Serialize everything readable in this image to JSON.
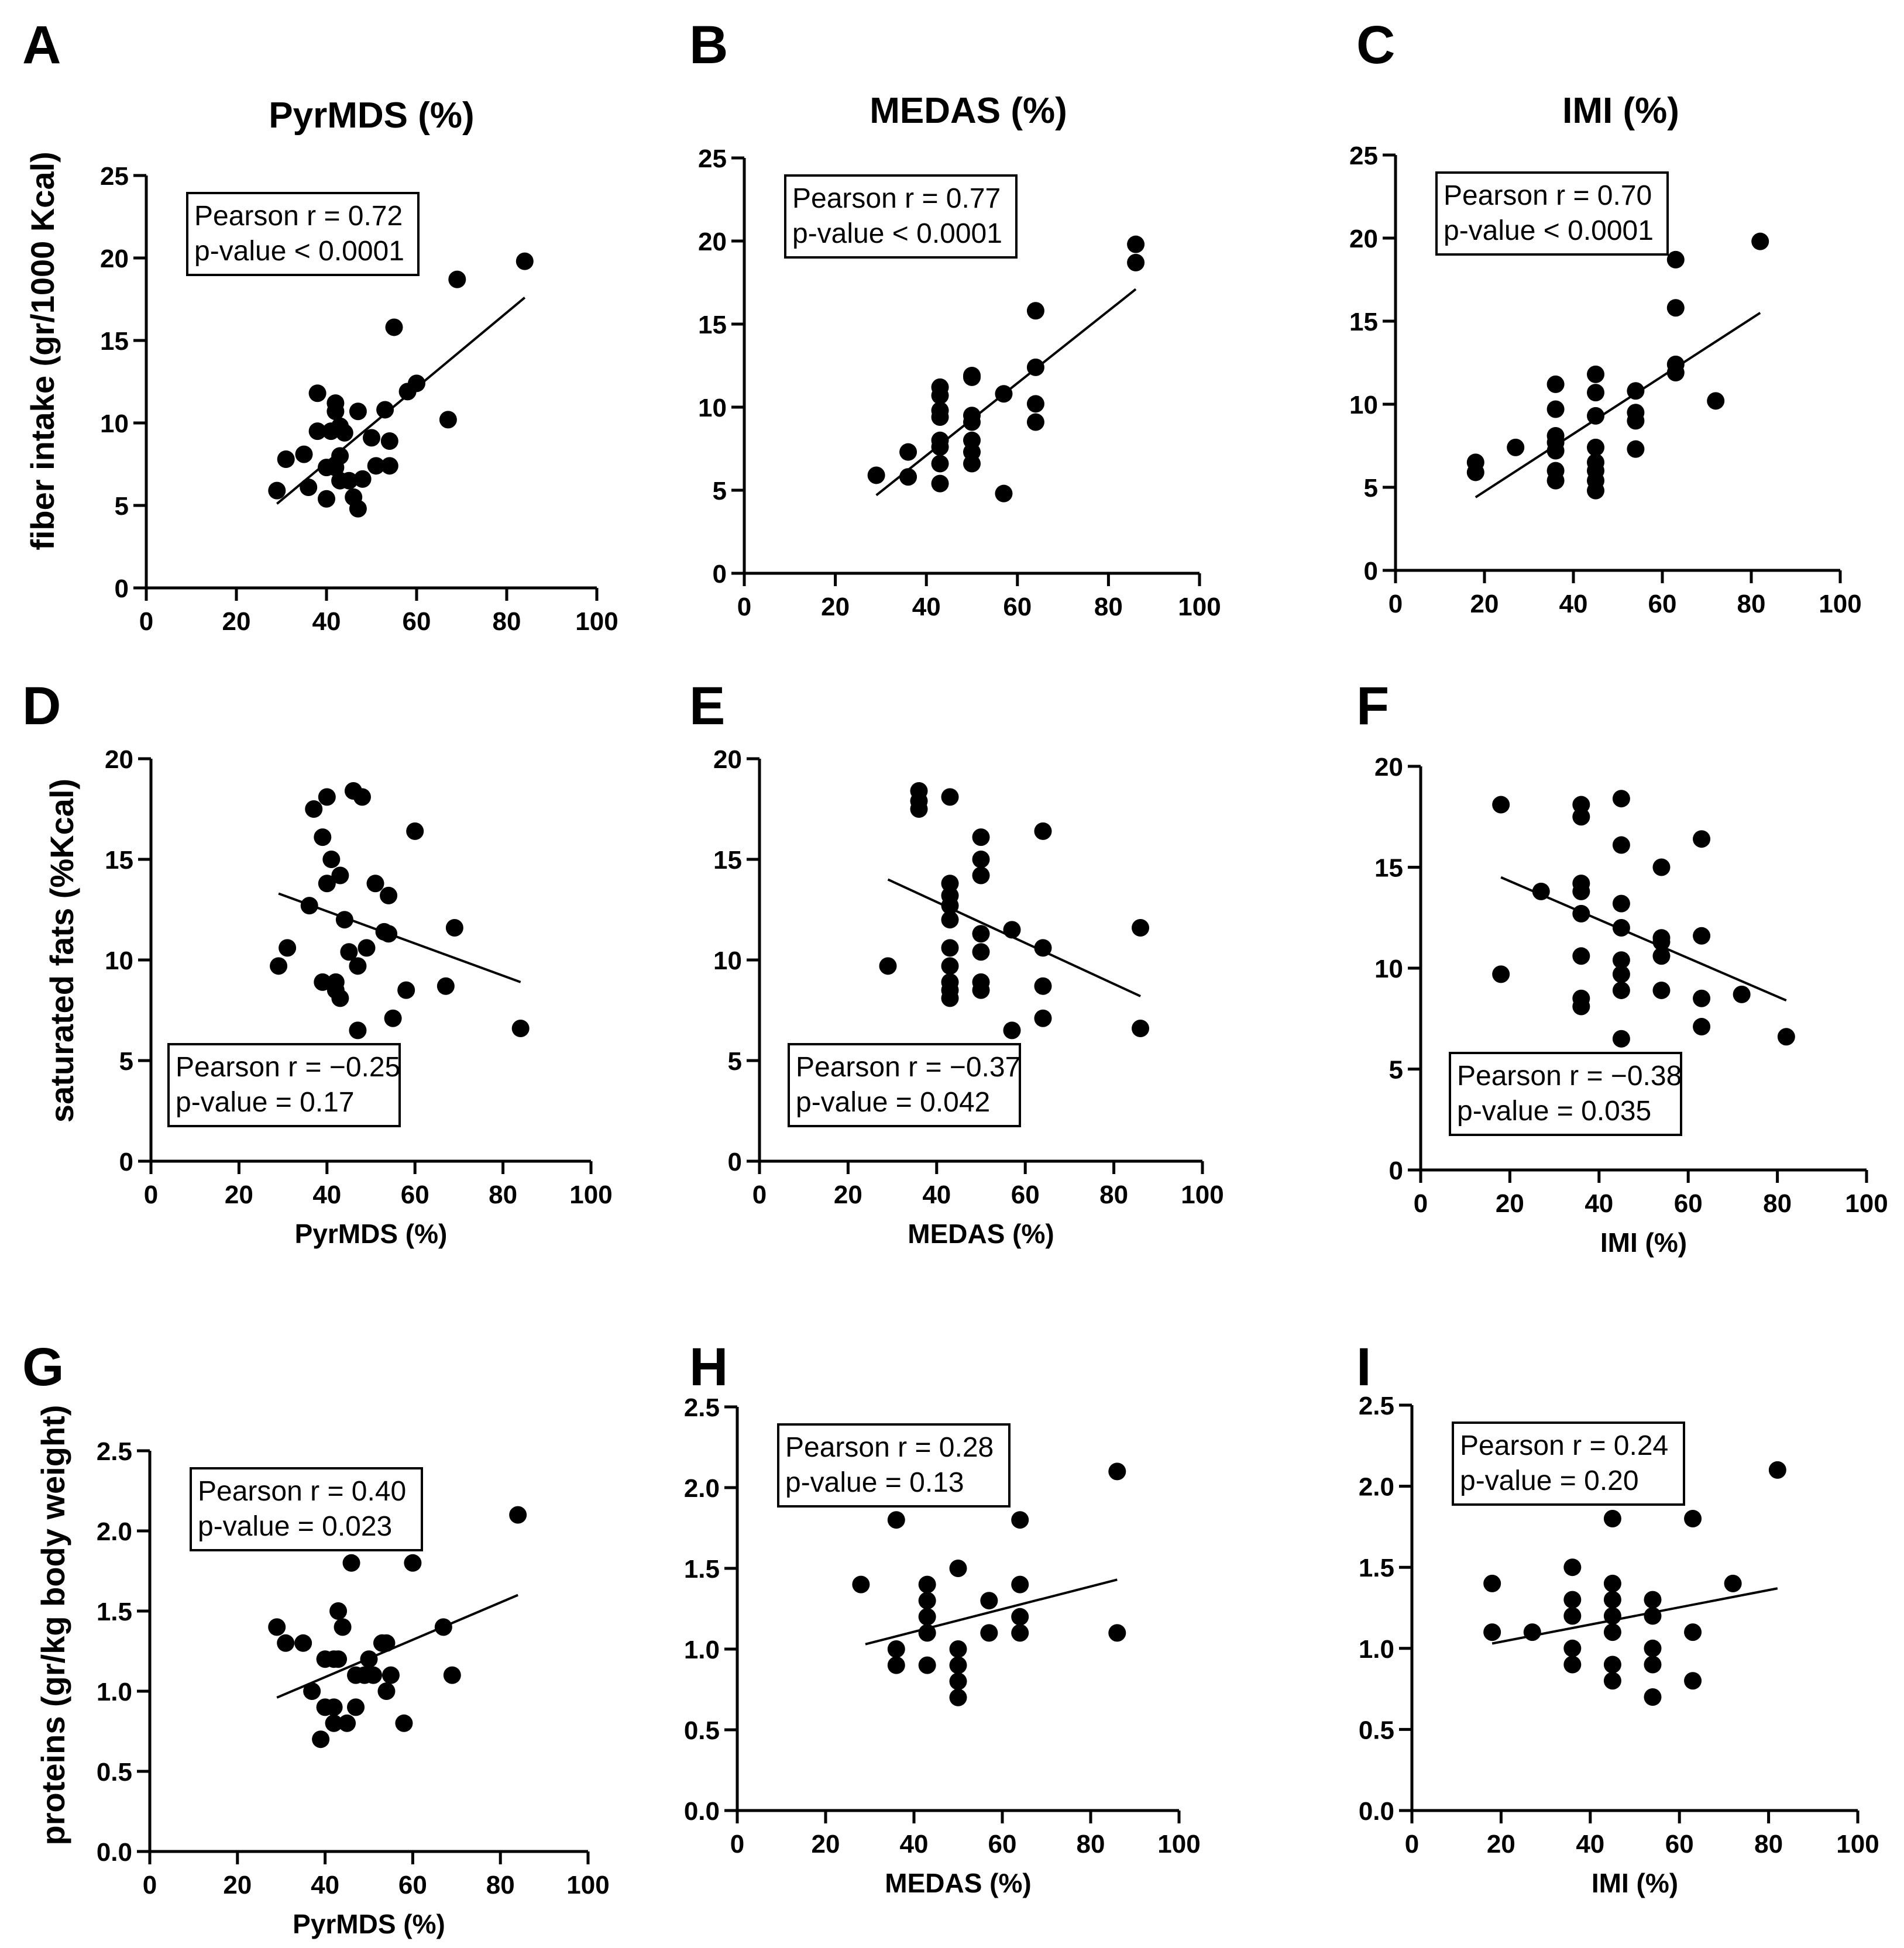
{
  "columns": [
    {
      "letter": "A",
      "title": "PyrMDS (%)"
    },
    {
      "letter": "B",
      "title": "MEDAS (%)"
    },
    {
      "letter": "C",
      "title": "IMI (%)"
    }
  ],
  "row_labels": [
    "fiber intake (gr/1000 Kcal)",
    "saturated fats (%Kcal)",
    "proteins (gr/kg body weight)"
  ],
  "chart_data": [
    {
      "panel": "A",
      "type": "scatter",
      "xlabel": "",
      "ylabel": "fiber intake (gr/1000 Kcal)",
      "xlim": [
        0,
        100
      ],
      "ylim": [
        0,
        25
      ],
      "xticks": [
        "0",
        "20",
        "40",
        "60",
        "80",
        "100"
      ],
      "yticks": [
        "0",
        "5",
        "10",
        "15",
        "20",
        "25"
      ],
      "stats": [
        "Pearson r = 0.72",
        "p-value < 0.0001"
      ],
      "stats_position": "top-left",
      "fit": {
        "x": [
          29,
          84
        ],
        "y": [
          5.1,
          17.6
        ]
      },
      "points": [
        [
          29,
          5.9
        ],
        [
          31,
          7.8
        ],
        [
          35,
          8.1
        ],
        [
          36,
          6.1
        ],
        [
          38,
          11.8
        ],
        [
          38,
          9.5
        ],
        [
          40,
          7.3
        ],
        [
          40,
          5.4
        ],
        [
          41,
          9.5
        ],
        [
          42,
          11.2
        ],
        [
          42,
          10.7
        ],
        [
          42,
          7.3
        ],
        [
          43,
          9.8
        ],
        [
          43,
          8.0
        ],
        [
          43,
          6.5
        ],
        [
          44,
          9.4
        ],
        [
          45,
          6.5
        ],
        [
          46,
          5.5
        ],
        [
          47,
          4.8
        ],
        [
          47,
          10.7
        ],
        [
          48,
          6.6
        ],
        [
          50,
          9.1
        ],
        [
          51,
          7.4
        ],
        [
          53,
          10.8
        ],
        [
          54,
          8.9
        ],
        [
          54,
          7.4
        ],
        [
          55,
          15.8
        ],
        [
          58,
          11.9
        ],
        [
          60,
          12.4
        ],
        [
          67,
          10.2
        ],
        [
          69,
          18.7
        ],
        [
          84,
          19.8
        ]
      ]
    },
    {
      "panel": "B",
      "type": "scatter",
      "xlabel": "",
      "ylabel": "",
      "xlim": [
        0,
        100
      ],
      "ylim": [
        0,
        25
      ],
      "xticks": [
        "0",
        "20",
        "40",
        "60",
        "80",
        "100"
      ],
      "yticks": [
        "0",
        "5",
        "10",
        "15",
        "20",
        "25"
      ],
      "stats": [
        "Pearson r = 0.77",
        "p-value < 0.0001"
      ],
      "stats_position": "top-left",
      "fit": {
        "x": [
          29,
          86
        ],
        "y": [
          4.7,
          17.1
        ]
      },
      "points": [
        [
          29,
          5.9
        ],
        [
          36,
          7.3
        ],
        [
          36,
          5.8
        ],
        [
          43,
          11.2
        ],
        [
          43,
          10.7
        ],
        [
          43,
          9.8
        ],
        [
          43,
          9.4
        ],
        [
          43,
          8.0
        ],
        [
          43,
          7.6
        ],
        [
          43,
          6.6
        ],
        [
          43,
          5.4
        ],
        [
          50,
          11.9
        ],
        [
          50,
          11.8
        ],
        [
          50,
          9.5
        ],
        [
          50,
          9.1
        ],
        [
          50,
          8.0
        ],
        [
          50,
          7.3
        ],
        [
          50,
          6.6
        ],
        [
          57,
          10.8
        ],
        [
          57,
          4.8
        ],
        [
          64,
          15.8
        ],
        [
          64,
          12.4
        ],
        [
          64,
          10.2
        ],
        [
          64,
          9.1
        ],
        [
          86,
          19.8
        ],
        [
          86,
          18.7
        ]
      ]
    },
    {
      "panel": "C",
      "type": "scatter",
      "xlabel": "",
      "ylabel": "",
      "xlim": [
        0,
        100
      ],
      "ylim": [
        0,
        25
      ],
      "xticks": [
        "0",
        "20",
        "40",
        "60",
        "80",
        "100"
      ],
      "yticks": [
        "0",
        "5",
        "10",
        "15",
        "20",
        "25"
      ],
      "stats": [
        "Pearson r = 0.70",
        "p-value < 0.0001"
      ],
      "stats_position": "top-left",
      "fit": {
        "x": [
          18,
          82
        ],
        "y": [
          4.4,
          15.5
        ]
      },
      "points": [
        [
          18,
          6.5
        ],
        [
          18,
          5.9
        ],
        [
          27,
          7.4
        ],
        [
          36,
          11.2
        ],
        [
          36,
          9.7
        ],
        [
          36,
          8.1
        ],
        [
          36,
          7.7
        ],
        [
          36,
          7.2
        ],
        [
          36,
          6.0
        ],
        [
          36,
          5.4
        ],
        [
          45,
          11.8
        ],
        [
          45,
          10.7
        ],
        [
          45,
          9.3
        ],
        [
          45,
          7.4
        ],
        [
          45,
          6.5
        ],
        [
          45,
          6.0
        ],
        [
          45,
          5.4
        ],
        [
          45,
          4.8
        ],
        [
          54,
          10.8
        ],
        [
          54,
          9.5
        ],
        [
          54,
          9.0
        ],
        [
          54,
          7.3
        ],
        [
          63,
          18.7
        ],
        [
          63,
          15.8
        ],
        [
          63,
          12.4
        ],
        [
          63,
          11.9
        ],
        [
          72,
          10.2
        ],
        [
          82,
          19.8
        ]
      ]
    },
    {
      "panel": "D",
      "type": "scatter",
      "xlabel": "PyrMDS (%)",
      "ylabel": "saturated fats (%Kcal)",
      "xlim": [
        0,
        100
      ],
      "ylim": [
        0,
        20
      ],
      "xticks": [
        "0",
        "20",
        "40",
        "60",
        "80",
        "100"
      ],
      "yticks": [
        "0",
        "5",
        "10",
        "15",
        "20"
      ],
      "stats": [
        "Pearson r = −0.25",
        "p-value = 0.17"
      ],
      "stats_position": "bottom-left",
      "fit": {
        "x": [
          29,
          84
        ],
        "y": [
          13.3,
          8.9
        ]
      },
      "points": [
        [
          29,
          9.7
        ],
        [
          31,
          10.6
        ],
        [
          36,
          12.7
        ],
        [
          37,
          17.5
        ],
        [
          39,
          16.1
        ],
        [
          39,
          8.9
        ],
        [
          40,
          13.8
        ],
        [
          40,
          18.1
        ],
        [
          41,
          15.0
        ],
        [
          42,
          8.9
        ],
        [
          42,
          8.5
        ],
        [
          43,
          14.2
        ],
        [
          43,
          8.1
        ],
        [
          44,
          12.0
        ],
        [
          45,
          10.4
        ],
        [
          46,
          18.4
        ],
        [
          47,
          6.5
        ],
        [
          47,
          9.7
        ],
        [
          48,
          18.1
        ],
        [
          49,
          10.6
        ],
        [
          51,
          13.8
        ],
        [
          53,
          11.4
        ],
        [
          54,
          13.2
        ],
        [
          54,
          11.3
        ],
        [
          55,
          7.1
        ],
        [
          58,
          8.5
        ],
        [
          60,
          16.4
        ],
        [
          67,
          8.7
        ],
        [
          69,
          11.6
        ],
        [
          84,
          6.6
        ]
      ]
    },
    {
      "panel": "E",
      "type": "scatter",
      "xlabel": "MEDAS (%)",
      "ylabel": "",
      "xlim": [
        0,
        100
      ],
      "ylim": [
        0,
        20
      ],
      "xticks": [
        "0",
        "20",
        "40",
        "60",
        "80",
        "100"
      ],
      "yticks": [
        "0",
        "5",
        "10",
        "15",
        "20"
      ],
      "stats": [
        "Pearson r = −0.37",
        "p-value = 0.042"
      ],
      "stats_position": "bottom-left",
      "fit": {
        "x": [
          29,
          86
        ],
        "y": [
          14.0,
          8.2
        ]
      },
      "points": [
        [
          29,
          9.7
        ],
        [
          36,
          18.4
        ],
        [
          36,
          17.9
        ],
        [
          36,
          17.5
        ],
        [
          43,
          18.1
        ],
        [
          43,
          13.8
        ],
        [
          43,
          13.2
        ],
        [
          43,
          12.7
        ],
        [
          43,
          12.0
        ],
        [
          43,
          10.6
        ],
        [
          43,
          9.7
        ],
        [
          43,
          8.9
        ],
        [
          43,
          8.5
        ],
        [
          43,
          8.1
        ],
        [
          50,
          16.1
        ],
        [
          50,
          15.0
        ],
        [
          50,
          14.2
        ],
        [
          50,
          11.3
        ],
        [
          50,
          10.4
        ],
        [
          50,
          8.9
        ],
        [
          50,
          8.5
        ],
        [
          57,
          11.5
        ],
        [
          57,
          6.5
        ],
        [
          64,
          16.4
        ],
        [
          64,
          10.6
        ],
        [
          64,
          8.7
        ],
        [
          64,
          7.1
        ],
        [
          86,
          11.6
        ],
        [
          86,
          6.6
        ]
      ]
    },
    {
      "panel": "F",
      "type": "scatter",
      "xlabel": "IMI (%)",
      "ylabel": "",
      "xlim": [
        0,
        100
      ],
      "ylim": [
        0,
        20
      ],
      "xticks": [
        "0",
        "20",
        "40",
        "60",
        "80",
        "100"
      ],
      "yticks": [
        "0",
        "5",
        "10",
        "15",
        "20"
      ],
      "stats": [
        "Pearson r = −0.38",
        "p-value = 0.035"
      ],
      "stats_position": "bottom-left",
      "fit": {
        "x": [
          18,
          82
        ],
        "y": [
          14.5,
          8.4
        ]
      },
      "points": [
        [
          18,
          18.1
        ],
        [
          18,
          9.7
        ],
        [
          27,
          13.8
        ],
        [
          36,
          18.1
        ],
        [
          36,
          17.5
        ],
        [
          36,
          14.2
        ],
        [
          36,
          13.8
        ],
        [
          36,
          12.7
        ],
        [
          36,
          10.6
        ],
        [
          36,
          8.5
        ],
        [
          36,
          8.1
        ],
        [
          45,
          18.4
        ],
        [
          45,
          16.1
        ],
        [
          45,
          13.2
        ],
        [
          45,
          12.0
        ],
        [
          45,
          10.4
        ],
        [
          45,
          9.7
        ],
        [
          45,
          8.9
        ],
        [
          45,
          6.5
        ],
        [
          54,
          15.0
        ],
        [
          54,
          11.5
        ],
        [
          54,
          11.3
        ],
        [
          54,
          10.6
        ],
        [
          54,
          8.9
        ],
        [
          63,
          16.4
        ],
        [
          63,
          11.6
        ],
        [
          63,
          8.5
        ],
        [
          63,
          7.1
        ],
        [
          72,
          8.7
        ],
        [
          82,
          6.6
        ]
      ]
    },
    {
      "panel": "G",
      "type": "scatter",
      "xlabel": "PyrMDS (%)",
      "ylabel": "proteins (gr/kg body weight)",
      "xlim": [
        0,
        100
      ],
      "ylim": [
        0,
        2.5
      ],
      "xticks": [
        "0",
        "20",
        "40",
        "60",
        "80",
        "100"
      ],
      "yticks": [
        "0.0",
        "0.5",
        "1.0",
        "1.5",
        "2.0",
        "2.5"
      ],
      "stats": [
        "Pearson r = 0.40",
        "p-value = 0.023"
      ],
      "stats_position": "top-left",
      "fit": {
        "x": [
          29,
          84
        ],
        "y": [
          0.96,
          1.6
        ]
      },
      "points": [
        [
          29,
          1.4
        ],
        [
          31,
          1.3
        ],
        [
          35,
          1.3
        ],
        [
          37,
          1.0
        ],
        [
          39,
          0.7
        ],
        [
          40,
          1.2
        ],
        [
          40,
          0.9
        ],
        [
          42,
          1.2
        ],
        [
          42,
          0.9
        ],
        [
          42,
          0.8
        ],
        [
          43,
          1.5
        ],
        [
          43,
          1.2
        ],
        [
          44,
          1.4
        ],
        [
          45,
          0.8
        ],
        [
          46,
          1.8
        ],
        [
          47,
          0.9
        ],
        [
          47,
          1.1
        ],
        [
          49,
          1.1
        ],
        [
          50,
          1.2
        ],
        [
          51,
          1.1
        ],
        [
          53,
          1.3
        ],
        [
          54,
          1.3
        ],
        [
          54,
          1.0
        ],
        [
          55,
          1.1
        ],
        [
          58,
          0.8
        ],
        [
          60,
          1.8
        ],
        [
          67,
          1.4
        ],
        [
          69,
          1.1
        ],
        [
          84,
          2.1
        ]
      ]
    },
    {
      "panel": "H",
      "type": "scatter",
      "xlabel": "MEDAS (%)",
      "ylabel": "",
      "xlim": [
        0,
        100
      ],
      "ylim": [
        0,
        2.5
      ],
      "xticks": [
        "0",
        "20",
        "40",
        "60",
        "80",
        "100"
      ],
      "yticks": [
        "0.0",
        "0.5",
        "1.0",
        "1.5",
        "2.0",
        "2.5"
      ],
      "stats": [
        "Pearson r = 0.28",
        "p-value = 0.13"
      ],
      "stats_position": "top-left",
      "fit": {
        "x": [
          29,
          86
        ],
        "y": [
          1.03,
          1.43
        ]
      },
      "points": [
        [
          28,
          1.4
        ],
        [
          36,
          1.8
        ],
        [
          36,
          1.0
        ],
        [
          36,
          0.9
        ],
        [
          43,
          1.4
        ],
        [
          43,
          1.3
        ],
        [
          43,
          1.2
        ],
        [
          43,
          1.1
        ],
        [
          43,
          0.9
        ],
        [
          50,
          1.5
        ],
        [
          50,
          1.0
        ],
        [
          50,
          0.9
        ],
        [
          50,
          0.8
        ],
        [
          50,
          0.7
        ],
        [
          57,
          1.3
        ],
        [
          57,
          1.1
        ],
        [
          64,
          1.8
        ],
        [
          64,
          1.4
        ],
        [
          64,
          1.2
        ],
        [
          64,
          1.1
        ],
        [
          86,
          2.1
        ],
        [
          86,
          1.1
        ]
      ]
    },
    {
      "panel": "I",
      "type": "scatter",
      "xlabel": "IMI (%)",
      "ylabel": "",
      "xlim": [
        0,
        100
      ],
      "ylim": [
        0,
        2.5
      ],
      "xticks": [
        "0",
        "20",
        "40",
        "60",
        "80",
        "100"
      ],
      "yticks": [
        "0.0",
        "0.5",
        "1.0",
        "1.5",
        "2.0",
        "2.5"
      ],
      "stats": [
        "Pearson r = 0.24",
        "p-value = 0.20"
      ],
      "stats_position": "top-left",
      "fit": {
        "x": [
          18,
          82
        ],
        "y": [
          1.03,
          1.37
        ]
      },
      "points": [
        [
          18,
          1.4
        ],
        [
          18,
          1.1
        ],
        [
          27,
          1.1
        ],
        [
          36,
          1.5
        ],
        [
          36,
          1.3
        ],
        [
          36,
          1.2
        ],
        [
          36,
          1.0
        ],
        [
          36,
          0.9
        ],
        [
          45,
          1.8
        ],
        [
          45,
          1.4
        ],
        [
          45,
          1.3
        ],
        [
          45,
          1.2
        ],
        [
          45,
          1.1
        ],
        [
          45,
          0.9
        ],
        [
          45,
          0.8
        ],
        [
          54,
          1.3
        ],
        [
          54,
          1.2
        ],
        [
          54,
          1.0
        ],
        [
          54,
          0.9
        ],
        [
          54,
          0.7
        ],
        [
          63,
          1.8
        ],
        [
          63,
          1.1
        ],
        [
          63,
          0.8
        ],
        [
          72,
          1.4
        ],
        [
          82,
          2.1
        ]
      ]
    }
  ]
}
